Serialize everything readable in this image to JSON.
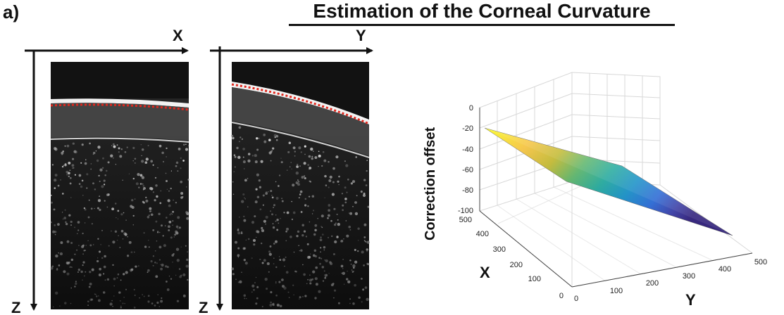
{
  "figure": {
    "panel_label": "a)",
    "title": "Estimation of the Corneal Curvature"
  },
  "oct_scans": [
    {
      "horizontal_axis": "X",
      "vertical_axis": "Z"
    },
    {
      "horizontal_axis": "Y",
      "vertical_axis": "Z"
    }
  ],
  "surface_plot": {
    "zlabel": "Correction offset",
    "xlabel": "X",
    "ylabel": "Y",
    "z_ticks": [
      "0",
      "-20",
      "-40",
      "-60",
      "-80",
      "-100"
    ],
    "x_ticks": [
      "0",
      "100",
      "200",
      "300",
      "400",
      "500"
    ],
    "y_ticks": [
      "0",
      "100",
      "200",
      "300",
      "400",
      "500"
    ],
    "colormap": [
      "#f9fb0e",
      "#fcc538",
      "#e5b92f",
      "#a7bf33",
      "#5ebd6d",
      "#23b3a6",
      "#1a9bd6",
      "#3174e9",
      "#4447b8",
      "#3b2a8c"
    ]
  }
}
